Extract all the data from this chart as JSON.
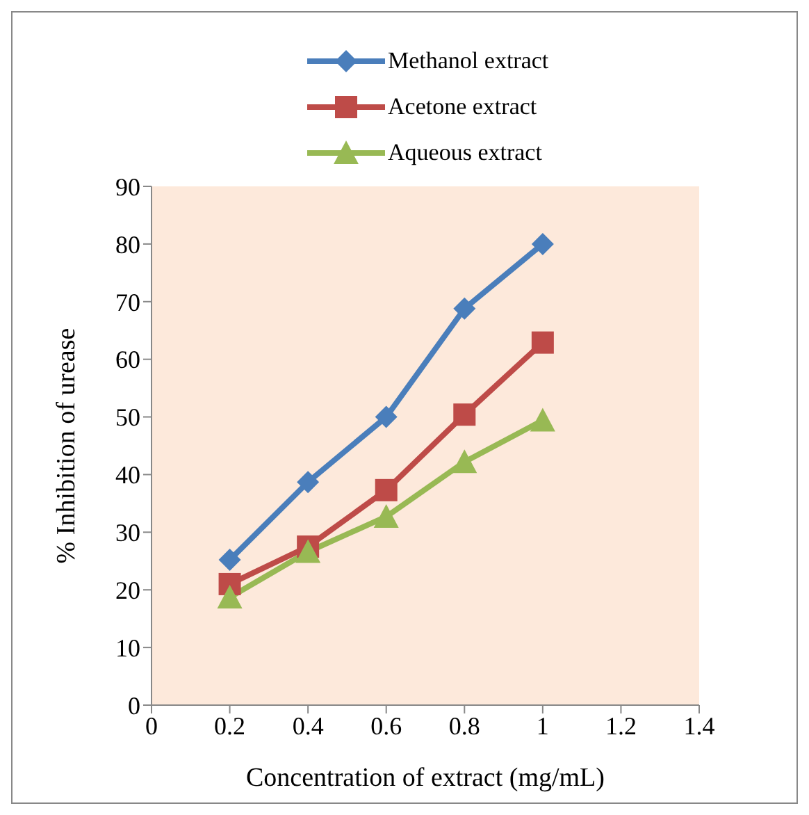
{
  "chart_data": {
    "type": "line",
    "xlabel": "Concentration of extract (mg/mL)",
    "ylabel": "%  Inhibition of urease",
    "x": [
      0.2,
      0.4,
      0.6,
      0.8,
      1
    ],
    "series": [
      {
        "name": "Methanol extract",
        "color": "#4a7ebb",
        "marker": "diamond",
        "values": [
          25.2,
          38.7,
          50,
          68.8,
          80
        ]
      },
      {
        "name": "Acetone extract",
        "color": "#be4b48",
        "marker": "square",
        "values": [
          21,
          27.5,
          37.3,
          50.4,
          62.9
        ]
      },
      {
        "name": "Aqueous extract",
        "color": "#98b954",
        "marker": "triangle",
        "values": [
          18.7,
          26.6,
          32.7,
          42.2,
          49.4
        ]
      }
    ],
    "xlim": [
      0,
      1.4
    ],
    "xticks": [
      0,
      0.2,
      0.4,
      0.6,
      0.8,
      1,
      1.2,
      1.4
    ],
    "ylim": [
      0,
      90
    ],
    "yticks": [
      0,
      10,
      20,
      30,
      40,
      50,
      60,
      70,
      80,
      90
    ],
    "grid": false,
    "legend": "top",
    "line_style": "solid"
  }
}
